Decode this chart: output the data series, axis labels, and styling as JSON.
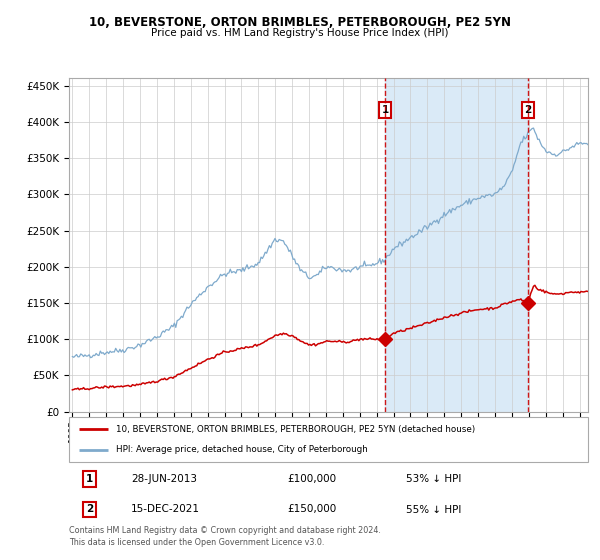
{
  "title": "10, BEVERSTONE, ORTON BRIMBLES, PETERBOROUGH, PE2 5YN",
  "subtitle": "Price paid vs. HM Land Registry's House Price Index (HPI)",
  "ylim": [
    0,
    460000
  ],
  "yticks": [
    0,
    50000,
    100000,
    150000,
    200000,
    250000,
    300000,
    350000,
    400000,
    450000
  ],
  "x_start_year": 1995.0,
  "x_end_year": 2025.5,
  "hpi_color": "#7faacc",
  "price_color": "#cc0000",
  "sale1_year": 2013.49,
  "sale1_price": 100000,
  "sale2_year": 2021.96,
  "sale2_price": 150000,
  "legend_line1": "10, BEVERSTONE, ORTON BRIMBLES, PETERBOROUGH, PE2 5YN (detached house)",
  "legend_line2": "HPI: Average price, detached house, City of Peterborough",
  "table_row1": [
    "1",
    "28-JUN-2013",
    "£100,000",
    "53% ↓ HPI"
  ],
  "table_row2": [
    "2",
    "15-DEC-2021",
    "£150,000",
    "55% ↓ HPI"
  ],
  "footer": "Contains HM Land Registry data © Crown copyright and database right 2024.\nThis data is licensed under the Open Government Licence v3.0.",
  "background_color": "#ffffff",
  "plot_bg_color": "#ffffff",
  "grid_color": "#cccccc",
  "shaded_region_color": "#daeaf7"
}
